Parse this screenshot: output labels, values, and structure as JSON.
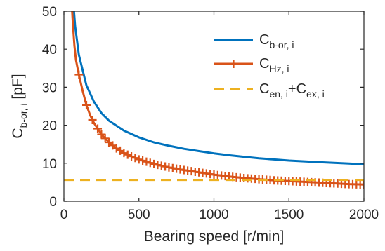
{
  "chart_data": {
    "type": "line",
    "xlabel": "Bearing speed [r/min]",
    "ylabel": {
      "main": "C",
      "sub": "b-or, i",
      "unit": " [pF]"
    },
    "xlim": [
      0,
      2000
    ],
    "ylim": [
      0,
      50
    ],
    "xticks": [
      0,
      500,
      1000,
      1500,
      2000
    ],
    "yticks": [
      0,
      10,
      20,
      30,
      40,
      50
    ],
    "grid": false,
    "legend_position": "top-right",
    "series": [
      {
        "name": {
          "main": "C",
          "sub": "b-or, i"
        },
        "color": "#0072BD",
        "style": "solid",
        "marker": "none",
        "x": [
          67,
          75,
          100,
          150,
          200,
          250,
          300,
          400,
          500,
          600,
          700,
          800,
          900,
          1000,
          1100,
          1200,
          1300,
          1400,
          1500,
          1600,
          1700,
          1800,
          1900,
          2000
        ],
        "y": [
          50,
          46,
          38.5,
          30.5,
          26.2,
          23.2,
          21.2,
          18.6,
          16.8,
          15.5,
          14.6,
          13.8,
          13.2,
          12.6,
          12.1,
          11.7,
          11.3,
          11.0,
          10.7,
          10.5,
          10.3,
          10.1,
          9.9,
          9.7
        ]
      },
      {
        "name": {
          "main": "C",
          "sub": "Hz, i"
        },
        "color": "#D95319",
        "style": "solid",
        "marker": "plus",
        "x": [
          55,
          60,
          70,
          80,
          100,
          125,
          150,
          175,
          200,
          250,
          300,
          350,
          400,
          450,
          500,
          600,
          700,
          800,
          900,
          1000,
          1100,
          1200,
          1300,
          1400,
          1500,
          1600,
          1700,
          1800,
          1900,
          2000
        ],
        "y": [
          50,
          46.5,
          41,
          37.2,
          33.3,
          29,
          25.3,
          22.6,
          20.6,
          17.6,
          15.5,
          13.9,
          12.7,
          11.8,
          11.0,
          9.8,
          8.9,
          8.2,
          7.6,
          7.0,
          6.5,
          6.1,
          5.8,
          5.5,
          5.3,
          5.1,
          4.9,
          4.7,
          4.5,
          4.4
        ],
        "marker_x": [
          100,
          150,
          190,
          225,
          250,
          275,
          300,
          325,
          350,
          375,
          400,
          425,
          450,
          475,
          500,
          525,
          550,
          575,
          600,
          625,
          650,
          675,
          700,
          725,
          750,
          775,
          800,
          825,
          850,
          875,
          900,
          925,
          950,
          975,
          1000,
          1025,
          1050,
          1075,
          1100,
          1125,
          1150,
          1175,
          1200,
          1225,
          1250,
          1275,
          1300,
          1325,
          1350,
          1375,
          1400,
          1425,
          1450,
          1475,
          1500,
          1525,
          1550,
          1575,
          1600,
          1625,
          1650,
          1675,
          1700,
          1725,
          1750,
          1775,
          1800,
          1825,
          1850,
          1875,
          1900,
          1925,
          1950,
          1975,
          2000
        ]
      },
      {
        "name": {
          "main": "C",
          "sub": "en, i",
          "main2": "+C",
          "sub2": "ex, i"
        },
        "color": "#EDB120",
        "style": "dashed",
        "marker": "none",
        "x": [
          0,
          2000
        ],
        "y": [
          5.6,
          5.6
        ]
      }
    ]
  }
}
